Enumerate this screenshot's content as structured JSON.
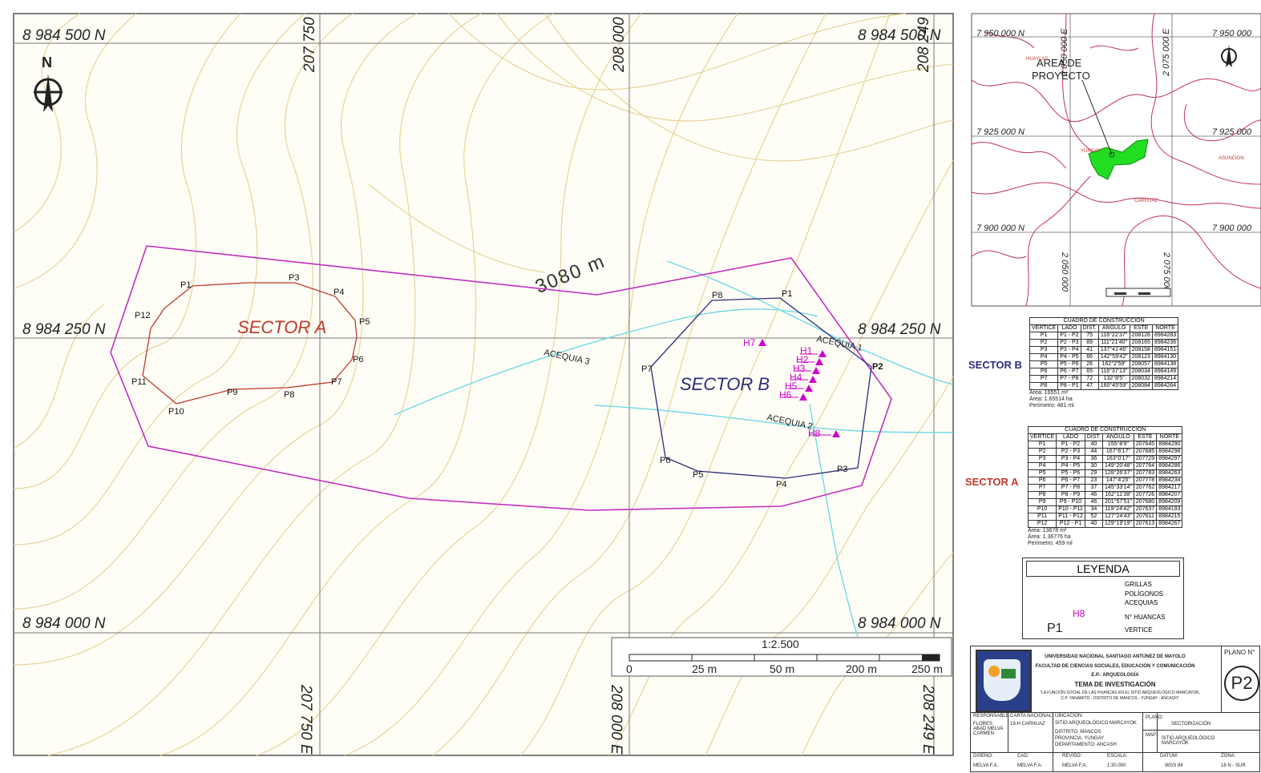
{
  "map": {
    "grid_labels_north": [
      "8 984 500 N",
      "8 984 250 N",
      "8 984 000 N"
    ],
    "grid_labels_east": [
      "207 750",
      "208 000",
      "208 249"
    ],
    "grid_labels_east_bottom": [
      "207 750 E",
      "208 000 E",
      "208 249 E"
    ],
    "north_label": "N",
    "contour_label": "3080 m",
    "sector_a": "SECTOR A",
    "sector_b": "SECTOR B",
    "acequias": [
      "ACEQUIA 1",
      "ACEQUIA 2",
      "ACEQUIA 3"
    ],
    "sector_a_points": [
      "P1",
      "P2",
      "P3",
      "P4",
      "P5",
      "P6",
      "P7",
      "P8",
      "P9",
      "P10",
      "P11",
      "P12"
    ],
    "sector_b_points": [
      "P1",
      "P2",
      "P3",
      "P4",
      "P5",
      "P6",
      "P7",
      "P8"
    ],
    "huancas": [
      "H1",
      "H2",
      "H3",
      "H4",
      "H5",
      "H6",
      "H7",
      "H8"
    ],
    "colors": {
      "contour": "#e6d49a",
      "sector_a": "#c0392b",
      "sector_b": "#2c2c7a",
      "buffer": "#c030c0",
      "acequia": "#6fd8e6",
      "huanca": "#cc00cc"
    }
  },
  "scale_bar": {
    "ratio": "1:2.500",
    "ticks": [
      "0",
      "25 m",
      "50 m",
      "200 m",
      "250 m"
    ]
  },
  "inset": {
    "labels_north": [
      "7 950 000 N",
      "7 925 000 N",
      "7 900 000 N"
    ],
    "labels_north_right": [
      "7 950 000",
      "7 925 000",
      "7 900 000"
    ],
    "labels_east": [
      "2 050 000 E",
      "2 075 000 E"
    ],
    "labels_east_bottom": [
      "2 050 000",
      "2 075 000"
    ],
    "area": [
      "AREA DE",
      "PROYECTO"
    ],
    "places": [
      "HUAYLAS",
      "YUNGAY",
      "CARHUAZ",
      "ASUNCION"
    ]
  },
  "table_b": {
    "title": "CUADRO DE CONSTRUCCION",
    "sector": "SECTOR B",
    "headers": [
      "VERTICE",
      "LADO",
      "DIST.",
      "ANGULO",
      "ESTE",
      "NORTE"
    ],
    "rows": [
      [
        "P1",
        "P1 - P2",
        "75",
        "116°22'37\"",
        "208126",
        "8984283"
      ],
      [
        "P2",
        "P2 - P3",
        "89",
        "111°21'40\"",
        "208165",
        "8984236"
      ],
      [
        "P3",
        "P3 - P4",
        "41",
        "137°41'46\"",
        "208158",
        "8984151"
      ],
      [
        "P4",
        "P4 - P5",
        "66",
        "142°59'42\"",
        "208123",
        "8984130"
      ],
      [
        "P5",
        "P5 - P6",
        "26",
        "162°2'59\"",
        "208057",
        "8984138"
      ],
      [
        "P6",
        "P6 - P7",
        "65",
        "116°37'13\"",
        "208034",
        "8984149"
      ],
      [
        "P7",
        "P7 - P8",
        "72",
        "132°8'5\"",
        "208032",
        "8984214"
      ],
      [
        "P8",
        "P8 - P1",
        "47",
        "160°45'59\"",
        "208084",
        "8984264"
      ]
    ],
    "area1": "Área: 16551 m²",
    "area2": "Área: 1.65514 ha",
    "perimetro": "Perímetro: 481 ml"
  },
  "table_a": {
    "title": "CUADRO DE CONSTRUCCION",
    "sector": "SECTOR A",
    "headers": [
      "VERTICE",
      "LADO",
      "DIST.",
      "ANGULO",
      "ESTE",
      "NORTE"
    ],
    "rows": [
      [
        "P1",
        "P1 - P2",
        "40",
        "155°8'9\"",
        "207645",
        "8984290"
      ],
      [
        "P2",
        "P2 - P3",
        "44",
        "167°6'17\"",
        "207685",
        "8984298"
      ],
      [
        "P3",
        "P3 - P4",
        "36",
        "163°0'17\"",
        "207729",
        "8984297"
      ],
      [
        "P4",
        "P4 - P5",
        "30",
        "149°20'48\"",
        "207764",
        "8984286"
      ],
      [
        "P5",
        "P5 - P6",
        "29",
        "128°26'37\"",
        "207783",
        "8984263"
      ],
      [
        "P6",
        "P6 - P7",
        "23",
        "147°4'25\"",
        "207778",
        "8984234"
      ],
      [
        "P7",
        "P7 - P8",
        "37",
        "145°33'14\"",
        "207762",
        "8984217"
      ],
      [
        "P8",
        "P8 - P9",
        "46",
        "162°11'38\"",
        "207726",
        "8984207"
      ],
      [
        "P9",
        "P9 - P10",
        "46",
        "201°57'51\"",
        "207680",
        "8984209"
      ],
      [
        "P10",
        "P10 - P11",
        "34",
        "119°24'42\"",
        "207637",
        "8984193"
      ],
      [
        "P11",
        "P11 - P12",
        "52",
        "127°24'43\"",
        "207611",
        "8984215"
      ],
      [
        "P12",
        "P12 - P1",
        "40",
        "129°19'19\"",
        "207613",
        "8984267"
      ]
    ],
    "area1": "Área: 13678 m²",
    "area2": "Área: 1.36776 ha",
    "perimetro": "Perímetro: 459 ml"
  },
  "legend": {
    "title": "LEYENDA",
    "items": [
      "GRILLAS",
      "POLÍGONOS",
      "ACEQUIAS",
      "N° HUANCAS",
      "VERTICE"
    ],
    "sym_h": "H8",
    "sym_p": "P1"
  },
  "title_block": {
    "univ": "UNIVERSIDAD NACIONAL SANTIAGO ANTÚNEZ DE MAYOLO",
    "fac": "FACULTAD DE CIENCIAS SOCIALES, EDUCACIÓN Y COMUNICACIÓN",
    "ep": "E.P.: ARQUEOLOGÍA",
    "tema": "TEMA DE INVESTIGACIÓN",
    "thesis1": "\"LA FUNCIÓN SOCIAL DE LAS HUANCAS EN EL SITIO ARQUEOLÓGICO MARCAYOK,",
    "thesis2": "C.P. YANAMITO - DISTRITO DE MANCOS - YUNGAY - ANCASH\"",
    "plano_label": "PLANO N°",
    "plano": "P2",
    "resp_label": "RESPONSABLE:",
    "resp": "FLORES ABAD MELVA CARMEN",
    "carta_label": "CARTA NACIONAL:",
    "carta": "19-H CARHUAZ",
    "ubic_label": "UBICACIÓN:",
    "ubic": [
      "SITIO ARQUEOLÓGICO MARCAYOK",
      "DISTRITO: MANCOS",
      "PROVINCIA: YUNGAY",
      "DEPARTAMENTO: ANCASH"
    ],
    "plano2_label": "PLANO:",
    "plano2": "SECTORIZACIÓN",
    "mapa_label": "MAP:",
    "mapa": "SITIO ARQUEOLÓGICO MARCAYOK",
    "diseno_label": "DISEÑO:",
    "diseno": "MELVA F.A.",
    "cad_label": "CAD:",
    "cad": "MELVA F.A.",
    "reviso_label": "REVISÓ:",
    "reviso": "MELVA F.A.",
    "escala_label": "ESCALA:",
    "escala": "1:30.000",
    "datum_label": "DATUM:",
    "datum": "WGS 84",
    "zona_label": "ZONA:",
    "zona": "18 N - SUR"
  }
}
